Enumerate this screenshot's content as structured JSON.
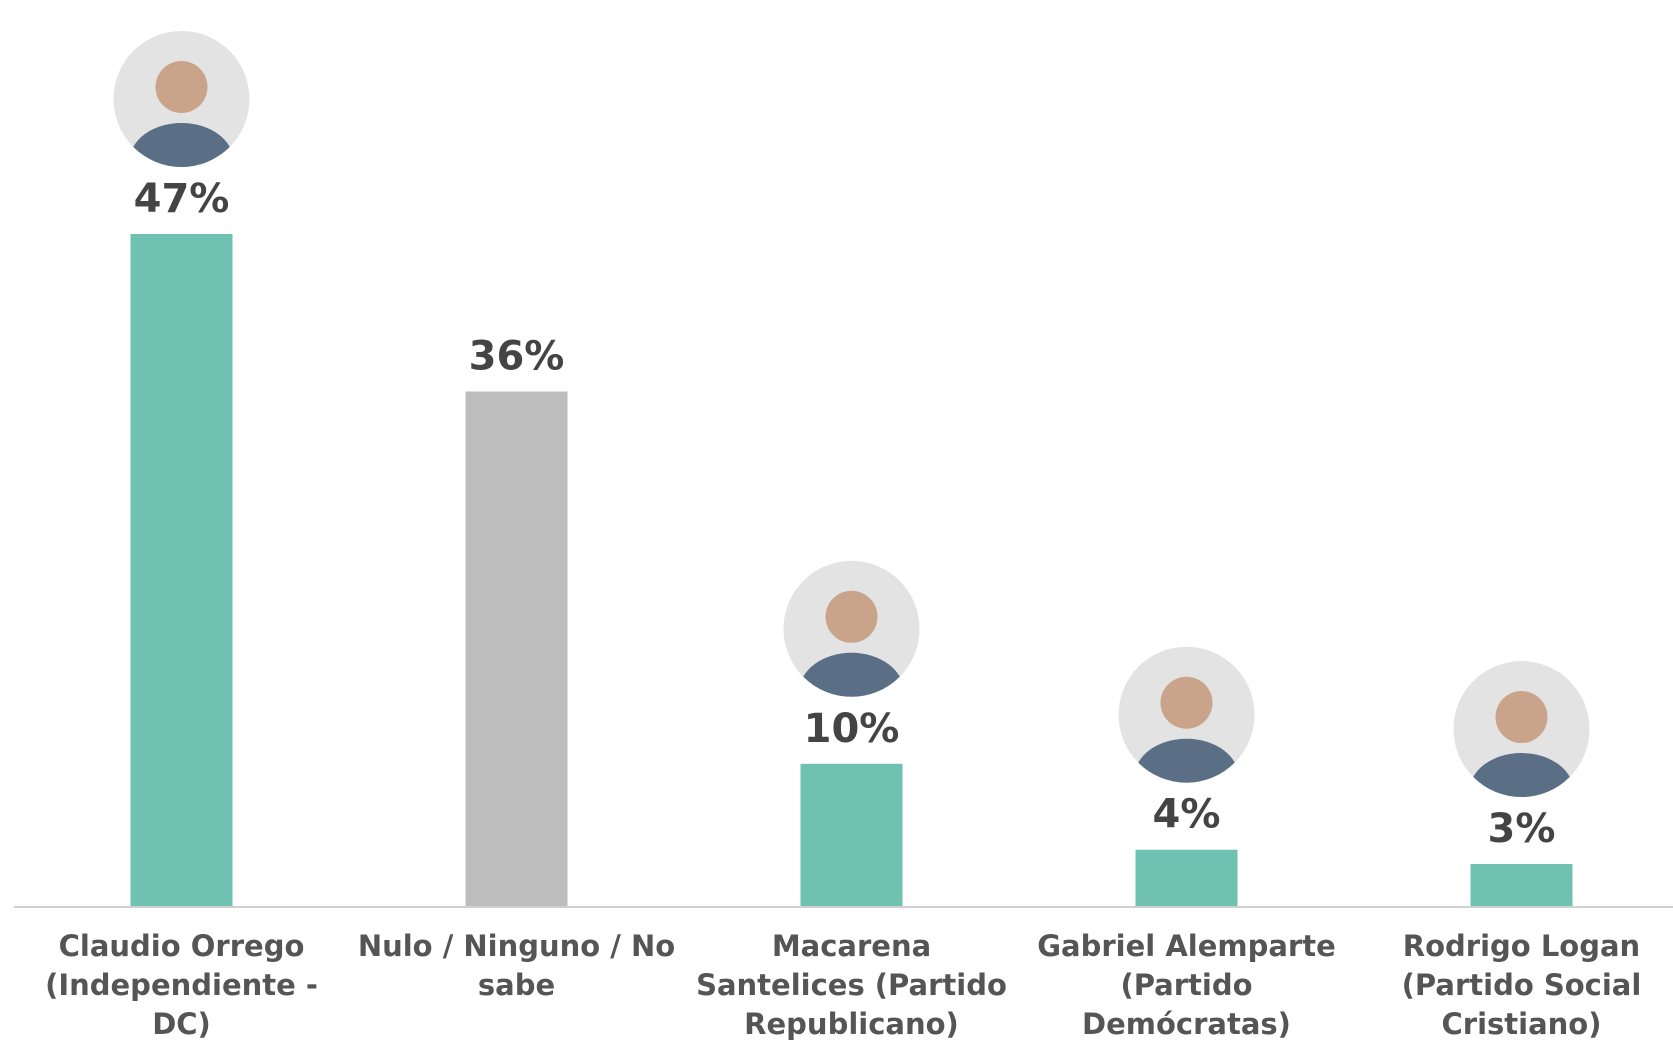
{
  "chart_data": {
    "type": "bar",
    "categories": [
      "Claudio Orrego (Independiente - DC)",
      "Nulo / Ninguno / No sabe",
      "Macarena Santelices (Partido Republicano)",
      "Gabriel Alemparte (Partido Demócratas)",
      "Rodrigo Logan (Partido Social Cristiano)"
    ],
    "values": [
      47,
      36,
      10,
      4,
      3
    ],
    "value_labels": [
      "47%",
      "36%",
      "10%",
      "4%",
      "3%"
    ],
    "colors": [
      "#6fc1b2",
      "#bdbdbd",
      "#6fc1b2",
      "#6fc1b2",
      "#6fc1b2"
    ]
  }
}
